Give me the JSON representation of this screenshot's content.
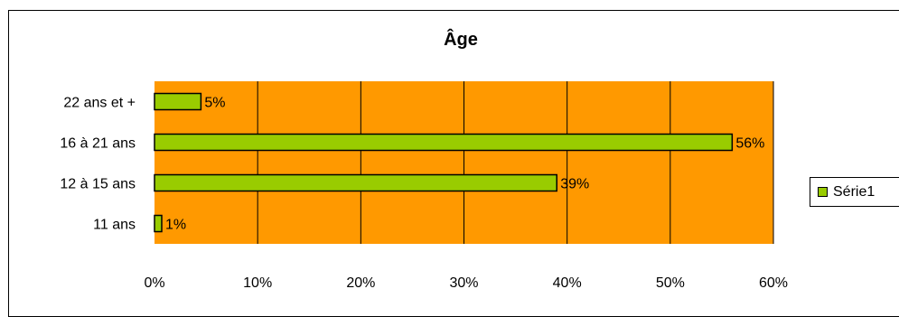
{
  "chart_data": {
    "type": "bar",
    "orientation": "horizontal",
    "title": "Âge",
    "xlabel": "",
    "ylabel": "",
    "categories": [
      "22 ans et +",
      "16 à 21 ans",
      "12 à 15 ans",
      "11 ans"
    ],
    "series": [
      {
        "name": "Série1",
        "values": [
          4.5,
          56,
          39,
          0.7
        ],
        "labels": [
          "5%",
          "56%",
          "39%",
          "1%"
        ],
        "color": "#99cc00"
      }
    ],
    "xlim": [
      0,
      60
    ],
    "x_ticks": [
      0,
      10,
      20,
      30,
      40,
      50,
      60
    ],
    "x_tick_labels": [
      "0%",
      "10%",
      "20%",
      "30%",
      "40%",
      "50%",
      "60%"
    ],
    "grid": "vertical",
    "legend": "right",
    "plot_background": "#ff9900",
    "bar_border_color": "#000000"
  }
}
